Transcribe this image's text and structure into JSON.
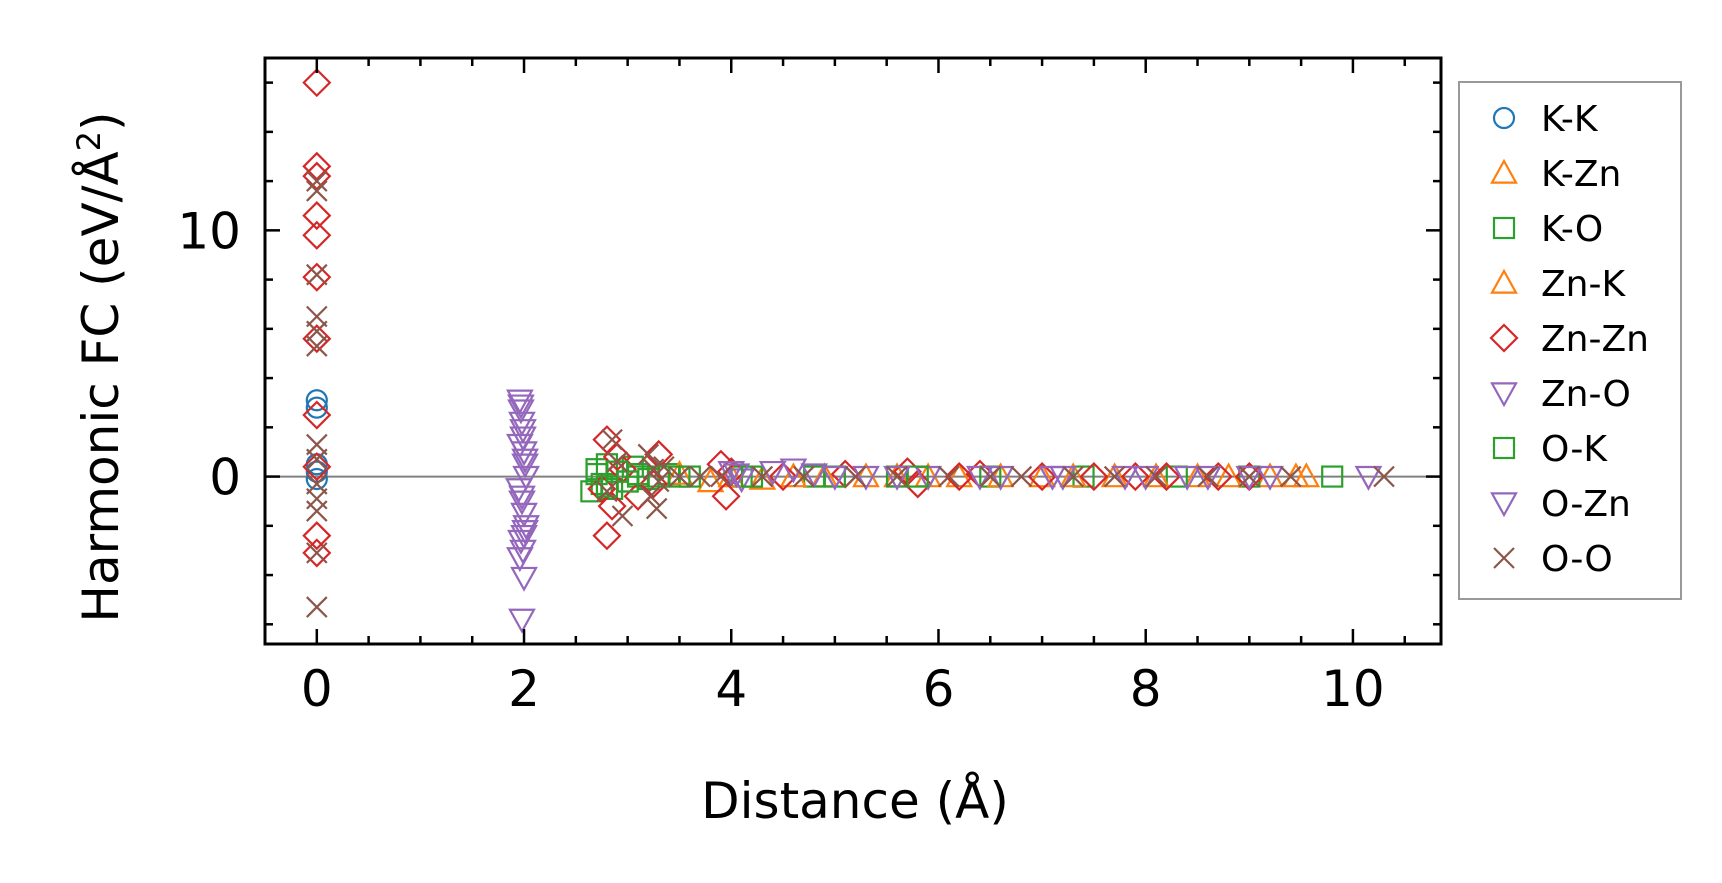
{
  "chart_data": {
    "type": "scatter",
    "title": "",
    "xlabel": "Distance (Å)",
    "ylabel": "Harmonic FC (eV/Å",
    "ylabel_sup": "2",
    "ylabel_close": ")",
    "xlim": [
      -0.5,
      10.85
    ],
    "ylim": [
      -6.8,
      17.0
    ],
    "x_major_ticks": [
      0,
      2,
      4,
      6,
      8,
      10
    ],
    "x_major_labels": [
      "0",
      "2",
      "4",
      "6",
      "8",
      "10"
    ],
    "x_minor_step": 0.5,
    "y_major_ticks": [
      0,
      10
    ],
    "y_major_labels": [
      "0",
      "10"
    ],
    "y_minor_step": 2,
    "zero_line": true,
    "legend_position": "right",
    "series": [
      {
        "name": "K-K",
        "marker": "circle",
        "color": "#1f77b4",
        "x": [
          0,
          0,
          0,
          0,
          0
        ],
        "y": [
          3.1,
          2.8,
          0.5,
          0.2,
          -0.1
        ]
      },
      {
        "name": "K-Zn",
        "marker": "triangle-up",
        "color": "#ff7f0e",
        "x": [
          3.8,
          4.3,
          4.9,
          5.6,
          6.2,
          7.0,
          7.7,
          8.5,
          9.2,
          9.55
        ],
        "y": [
          -0.2,
          -0.1,
          0.0,
          0.0,
          0.0,
          0.0,
          0.0,
          0.0,
          0.0,
          0.0
        ]
      },
      {
        "name": "K-O",
        "marker": "square",
        "color": "#2ca02c",
        "x": [
          2.65,
          2.7,
          2.75,
          2.8,
          2.85,
          2.9,
          3.0,
          3.05,
          3.1,
          3.2,
          3.4,
          3.6,
          4.1,
          4.8,
          5.6,
          6.5,
          7.4,
          8.3,
          9.0,
          9.8
        ],
        "y": [
          -0.6,
          0.3,
          -0.3,
          0.5,
          -0.5,
          0.2,
          -0.2,
          0.4,
          0.0,
          -0.1,
          0.1,
          0.0,
          0.0,
          0.0,
          0.0,
          0.0,
          0.0,
          0.0,
          0.0,
          0.0
        ]
      },
      {
        "name": "Zn-K",
        "marker": "triangle-up",
        "color": "#ff7f0e",
        "x": [
          3.5,
          4.0,
          4.6,
          5.3,
          5.9,
          6.6,
          7.3,
          8.1,
          8.8,
          9.45
        ],
        "y": [
          0.1,
          0.0,
          0.0,
          0.0,
          0.0,
          0.0,
          0.0,
          0.0,
          0.0,
          0.0
        ]
      },
      {
        "name": "Zn-Zn",
        "marker": "diamond",
        "color": "#d62728",
        "x": [
          0,
          0,
          0,
          0,
          0,
          0,
          0,
          0,
          0,
          0,
          0,
          2.8,
          2.85,
          2.9,
          2.75,
          2.8,
          2.95,
          3.1,
          3.3,
          3.25,
          3.9,
          3.95,
          4.0,
          4.5,
          5.1,
          5.7,
          5.8,
          6.2,
          6.4,
          7.0,
          7.5,
          7.9,
          8.2,
          8.7,
          9.0
        ],
        "y": [
          16.0,
          12.6,
          12.2,
          10.6,
          9.8,
          8.1,
          5.6,
          2.5,
          0.4,
          -2.4,
          -3.1,
          1.5,
          -1.2,
          0.8,
          -0.5,
          -2.4,
          0.3,
          -0.8,
          0.9,
          -0.3,
          0.5,
          -0.8,
          0.2,
          0.0,
          0.1,
          0.2,
          -0.3,
          0.0,
          0.1,
          0.0,
          0.0,
          0.0,
          0.0,
          0.0,
          0.0
        ]
      },
      {
        "name": "Zn-O",
        "marker": "triangle-down",
        "color": "#9467bd",
        "x": [
          1.96,
          1.97,
          1.98,
          1.99,
          2.0,
          2.01,
          2.02,
          1.95,
          1.98,
          2.0,
          2.02,
          1.97,
          1.99,
          2.01,
          1.96,
          2.0,
          1.98,
          4.0,
          4.1,
          4.6,
          4.8,
          5.3,
          5.9,
          6.6,
          7.2,
          8.0,
          8.6,
          9.2,
          10.15
        ],
        "y": [
          3.1,
          2.7,
          2.2,
          1.6,
          1.0,
          0.5,
          0.0,
          -0.5,
          -1.0,
          -1.5,
          -2.0,
          -2.6,
          -3.0,
          -2.2,
          1.3,
          -4.1,
          -5.8,
          0.2,
          -0.1,
          0.3,
          0.1,
          0.0,
          0.0,
          0.0,
          0.0,
          0.0,
          0.0,
          0.0,
          0.0
        ]
      },
      {
        "name": "O-K",
        "marker": "square",
        "color": "#2ca02c",
        "x": [
          2.7,
          2.8,
          2.9,
          3.0,
          3.1,
          3.3,
          3.5,
          4.2,
          5.0,
          5.8
        ],
        "y": [
          0.1,
          -0.4,
          0.2,
          -0.2,
          0.1,
          0.0,
          0.0,
          0.0,
          0.0,
          0.0
        ]
      },
      {
        "name": "O-Zn",
        "marker": "triangle-down",
        "color": "#9467bd",
        "x": [
          1.97,
          1.99,
          2.01,
          1.98,
          2.0,
          1.96,
          4.05,
          4.4,
          5.0,
          5.6,
          6.4,
          7.1,
          7.8,
          8.4,
          9.0
        ],
        "y": [
          2.9,
          1.9,
          0.7,
          -0.8,
          -2.4,
          -3.3,
          0.1,
          0.2,
          0.0,
          0.0,
          0.0,
          0.0,
          0.0,
          0.0,
          0.0
        ]
      },
      {
        "name": "O-O",
        "marker": "x",
        "color": "#8c564b",
        "x": [
          0,
          0,
          0,
          0,
          0,
          0,
          0,
          0,
          0,
          0,
          0,
          0,
          0,
          2.85,
          2.9,
          2.8,
          2.95,
          3.2,
          3.25,
          3.3,
          3.22,
          3.28,
          3.35,
          3.5,
          3.7,
          3.9,
          4.3,
          4.7,
          5.2,
          5.6,
          6.1,
          6.5,
          6.8,
          7.3,
          7.7,
          8.1,
          8.6,
          9.0,
          9.4,
          10.3
        ],
        "y": [
          12.0,
          11.6,
          8.2,
          6.5,
          5.9,
          5.3,
          1.3,
          0.7,
          -0.3,
          -0.9,
          -1.4,
          -3.1,
          -5.3,
          1.5,
          0.6,
          -0.6,
          -1.6,
          0.9,
          0.3,
          -0.2,
          -0.8,
          -1.3,
          0.4,
          0.0,
          0.0,
          0.0,
          0.0,
          0.0,
          0.0,
          0.0,
          0.0,
          0.0,
          0.0,
          0.0,
          0.0,
          0.0,
          0.0,
          0.0,
          0.0,
          0.0
        ]
      }
    ]
  }
}
